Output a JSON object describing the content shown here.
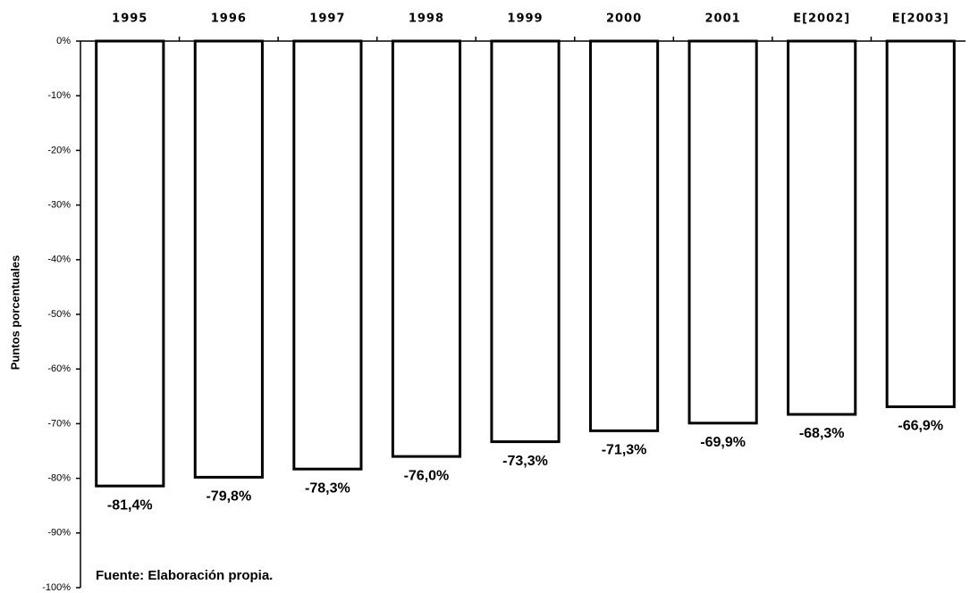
{
  "chart_data": {
    "type": "bar",
    "y_label": "Puntos porcentuales",
    "annotation": "Fuente: Elaboración propia.",
    "categories": [
      "1995",
      "1996",
      "1997",
      "1998",
      "1999",
      "2000",
      "2001",
      "E[2002]",
      "E[2003]"
    ],
    "values": [
      -81.4,
      -79.8,
      -78.3,
      -76.0,
      -73.3,
      -71.3,
      -69.9,
      -68.3,
      -66.9
    ],
    "value_labels": [
      "-81,4%",
      "-79,8%",
      "-78,3%",
      "-76,0%",
      "-73,3%",
      "-71,3%",
      "-69,9%",
      "-68,3%",
      "-66,9%"
    ],
    "color": "#ffffff",
    "ylim": [
      -100,
      0
    ],
    "yticks": [
      {
        "value": 0,
        "label": "0%"
      },
      {
        "value": -10,
        "label": "-10%"
      },
      {
        "value": -20,
        "label": "-20%"
      },
      {
        "value": -30,
        "label": "-30%"
      },
      {
        "value": -40,
        "label": "-40%"
      },
      {
        "value": -50,
        "label": "-50%"
      },
      {
        "value": -60,
        "label": "-60%"
      },
      {
        "value": -70,
        "label": "-70%"
      },
      {
        "value": -80,
        "label": "-80%"
      },
      {
        "value": -90,
        "label": "-90%"
      },
      {
        "value": -100,
        "label": "-100%"
      }
    ],
    "grid": false
  }
}
